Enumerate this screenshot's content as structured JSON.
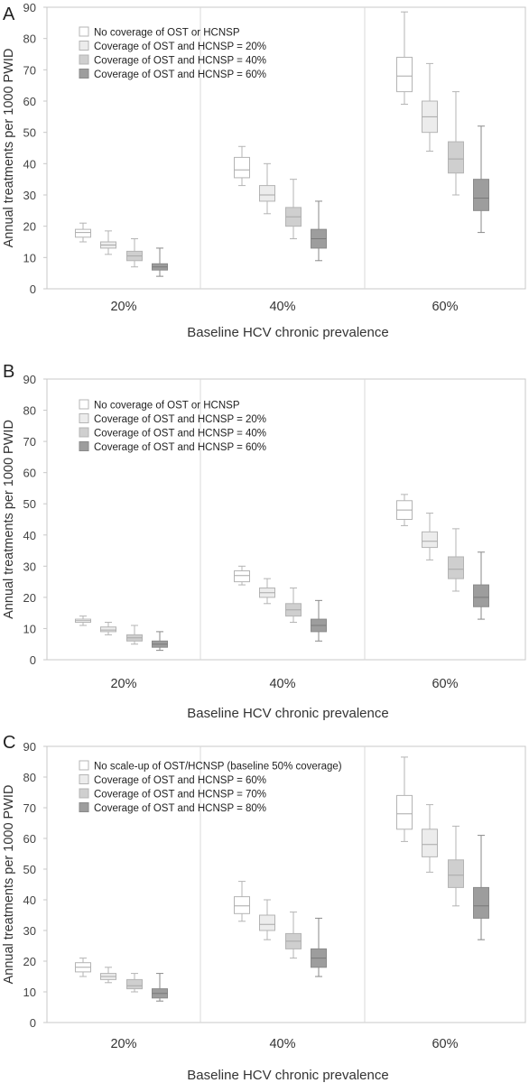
{
  "chart_data": [
    {
      "panel_label": "A",
      "type": "boxplot",
      "ylabel": "Annual treatments per 1000 PWID",
      "xlabel": "Baseline HCV chronic prevalence",
      "ylim": [
        0,
        90
      ],
      "yticks": [
        0,
        10,
        20,
        30,
        40,
        50,
        60,
        70,
        80,
        90
      ],
      "grid": false,
      "legend_position": "top-left",
      "categories": [
        "20%",
        "40%",
        "60%"
      ],
      "series": [
        {
          "name": "No coverage of OST or HCNSP",
          "color": "#ffffff",
          "stroke": "#b4b4b4",
          "boxes": [
            {
              "whislo": 15,
              "q1": 16.5,
              "med": 18,
              "q3": 19,
              "whishi": 21
            },
            {
              "whislo": 33,
              "q1": 35.5,
              "med": 38,
              "q3": 42,
              "whishi": 45.5
            },
            {
              "whislo": 59,
              "q1": 63,
              "med": 68,
              "q3": 74,
              "whishi": 88.5
            }
          ]
        },
        {
          "name": "Coverage of OST and HCNSP = 20%",
          "color": "#ececec",
          "stroke": "#b4b4b4",
          "boxes": [
            {
              "whislo": 11,
              "q1": 13,
              "med": 14,
              "q3": 15,
              "whishi": 18.5
            },
            {
              "whislo": 24,
              "q1": 28,
              "med": 30,
              "q3": 33,
              "whishi": 40
            },
            {
              "whislo": 44,
              "q1": 50,
              "med": 55,
              "q3": 60,
              "whishi": 72
            }
          ]
        },
        {
          "name": "Coverage of OST and HCNSP = 40%",
          "color": "#cfcfcf",
          "stroke": "#b4b4b4",
          "boxes": [
            {
              "whislo": 7,
              "q1": 9,
              "med": 10.5,
              "q3": 12,
              "whishi": 16
            },
            {
              "whislo": 16,
              "q1": 20,
              "med": 23,
              "q3": 26,
              "whishi": 35
            },
            {
              "whislo": 30,
              "q1": 37,
              "med": 41.5,
              "q3": 47,
              "whishi": 63
            }
          ]
        },
        {
          "name": "Coverage of OST and HCNSP = 60%",
          "color": "#9d9d9d",
          "stroke": "#8a8a8a",
          "boxes": [
            {
              "whislo": 4,
              "q1": 6,
              "med": 7,
              "q3": 8,
              "whishi": 13
            },
            {
              "whislo": 9,
              "q1": 13,
              "med": 16,
              "q3": 19,
              "whishi": 28
            },
            {
              "whislo": 18,
              "q1": 25,
              "med": 29,
              "q3": 35,
              "whishi": 52
            }
          ]
        }
      ]
    },
    {
      "panel_label": "B",
      "type": "boxplot",
      "ylabel": "Annual treatments per 1000 PWID",
      "xlabel": "Baseline HCV chronic prevalence",
      "ylim": [
        0,
        90
      ],
      "yticks": [
        0,
        10,
        20,
        30,
        40,
        50,
        60,
        70,
        80,
        90
      ],
      "grid": false,
      "legend_position": "top-left",
      "categories": [
        "20%",
        "40%",
        "60%"
      ],
      "series": [
        {
          "name": "No coverage of OST or HCNSP",
          "color": "#ffffff",
          "stroke": "#b4b4b4",
          "boxes": [
            {
              "whislo": 11,
              "q1": 12,
              "med": 12.5,
              "q3": 13,
              "whishi": 14
            },
            {
              "whislo": 24,
              "q1": 25,
              "med": 27,
              "q3": 28.5,
              "whishi": 30
            },
            {
              "whislo": 43,
              "q1": 45,
              "med": 48,
              "q3": 51,
              "whishi": 53
            }
          ]
        },
        {
          "name": "Coverage of OST and HCNSP = 20%",
          "color": "#ececec",
          "stroke": "#b4b4b4",
          "boxes": [
            {
              "whislo": 8,
              "q1": 9,
              "med": 9.5,
              "q3": 10.5,
              "whishi": 12
            },
            {
              "whislo": 18,
              "q1": 20,
              "med": 21.5,
              "q3": 23,
              "whishi": 26
            },
            {
              "whislo": 32,
              "q1": 36,
              "med": 38,
              "q3": 41,
              "whishi": 47
            }
          ]
        },
        {
          "name": "Coverage of OST and HCNSP = 40%",
          "color": "#cfcfcf",
          "stroke": "#b4b4b4",
          "boxes": [
            {
              "whislo": 5,
              "q1": 6,
              "med": 7,
              "q3": 8,
              "whishi": 11
            },
            {
              "whislo": 12,
              "q1": 14,
              "med": 16,
              "q3": 18,
              "whishi": 23
            },
            {
              "whislo": 22,
              "q1": 26,
              "med": 29,
              "q3": 33,
              "whishi": 42
            }
          ]
        },
        {
          "name": "Coverage of OST and HCNSP = 60%",
          "color": "#9d9d9d",
          "stroke": "#8a8a8a",
          "boxes": [
            {
              "whislo": 3,
              "q1": 4,
              "med": 5,
              "q3": 6,
              "whishi": 9
            },
            {
              "whislo": 6,
              "q1": 9,
              "med": 11,
              "q3": 13,
              "whishi": 19
            },
            {
              "whislo": 13,
              "q1": 17,
              "med": 20,
              "q3": 24,
              "whishi": 34.5
            }
          ]
        }
      ]
    },
    {
      "panel_label": "C",
      "type": "boxplot",
      "ylabel": "Annual treatments per 1000 PWID",
      "xlabel": "Baseline HCV chronic prevalence",
      "ylim": [
        0,
        90
      ],
      "yticks": [
        0,
        10,
        20,
        30,
        40,
        50,
        60,
        70,
        80,
        90
      ],
      "grid": false,
      "legend_position": "top-left",
      "categories": [
        "20%",
        "40%",
        "60%"
      ],
      "series": [
        {
          "name": "No scale-up of OST/HCNSP (baseline 50% coverage)",
          "color": "#ffffff",
          "stroke": "#b4b4b4",
          "boxes": [
            {
              "whislo": 15,
              "q1": 16.5,
              "med": 18,
              "q3": 19.5,
              "whishi": 21
            },
            {
              "whislo": 33,
              "q1": 35.5,
              "med": 38,
              "q3": 41,
              "whishi": 46
            },
            {
              "whislo": 59,
              "q1": 63,
              "med": 68,
              "q3": 74,
              "whishi": 86.5
            }
          ]
        },
        {
          "name": "Coverage of OST and HCNSP = 60%",
          "color": "#ececec",
          "stroke": "#b4b4b4",
          "boxes": [
            {
              "whislo": 13,
              "q1": 14,
              "med": 15,
              "q3": 16,
              "whishi": 18
            },
            {
              "whislo": 27,
              "q1": 30,
              "med": 32,
              "q3": 35,
              "whishi": 40
            },
            {
              "whislo": 49,
              "q1": 54,
              "med": 58,
              "q3": 63,
              "whishi": 71
            }
          ]
        },
        {
          "name": "Coverage of OST and HCNSP = 70%",
          "color": "#cfcfcf",
          "stroke": "#b4b4b4",
          "boxes": [
            {
              "whislo": 10,
              "q1": 11,
              "med": 12,
              "q3": 14,
              "whishi": 16
            },
            {
              "whislo": 21,
              "q1": 24,
              "med": 26.5,
              "q3": 29,
              "whishi": 36
            },
            {
              "whislo": 38,
              "q1": 44,
              "med": 48,
              "q3": 53,
              "whishi": 64
            }
          ]
        },
        {
          "name": "Coverage of OST and HCNSP = 80%",
          "color": "#9d9d9d",
          "stroke": "#8a8a8a",
          "boxes": [
            {
              "whislo": 7,
              "q1": 8,
              "med": 9.5,
              "q3": 11,
              "whishi": 16
            },
            {
              "whislo": 15,
              "q1": 18,
              "med": 21,
              "q3": 24,
              "whishi": 34
            },
            {
              "whislo": 27,
              "q1": 34,
              "med": 38,
              "q3": 44,
              "whishi": 61
            }
          ]
        }
      ]
    }
  ]
}
